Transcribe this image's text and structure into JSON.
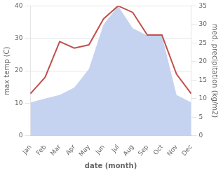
{
  "chart_data": {
    "type": "line",
    "xlabel": "date (month)",
    "ylabel": "max temp (C)",
    "y2label": "med. precipitation (kg/m2)",
    "categories": [
      "Jan",
      "Feb",
      "Mar",
      "Apr",
      "May",
      "Jun",
      "Jul",
      "Aug",
      "Sep",
      "Oct",
      "Nov",
      "Dec"
    ],
    "series": [
      {
        "type": "area",
        "color": "#c5d3f0",
        "axis": "y2",
        "values": [
          9,
          10,
          11,
          13,
          18,
          30,
          35,
          29,
          27,
          27,
          11,
          9
        ]
      },
      {
        "type": "line",
        "color": "#c0504d",
        "values": [
          13,
          18,
          29,
          27,
          28,
          36,
          40,
          38,
          31,
          31,
          19,
          13
        ]
      }
    ],
    "ylim": [
      0,
      40
    ],
    "yticks": [
      0,
      10,
      20,
      30,
      40
    ],
    "y2lim": [
      0,
      35
    ],
    "y2ticks": [
      0,
      5,
      10,
      15,
      20,
      25,
      30,
      35
    ],
    "grid": true
  }
}
